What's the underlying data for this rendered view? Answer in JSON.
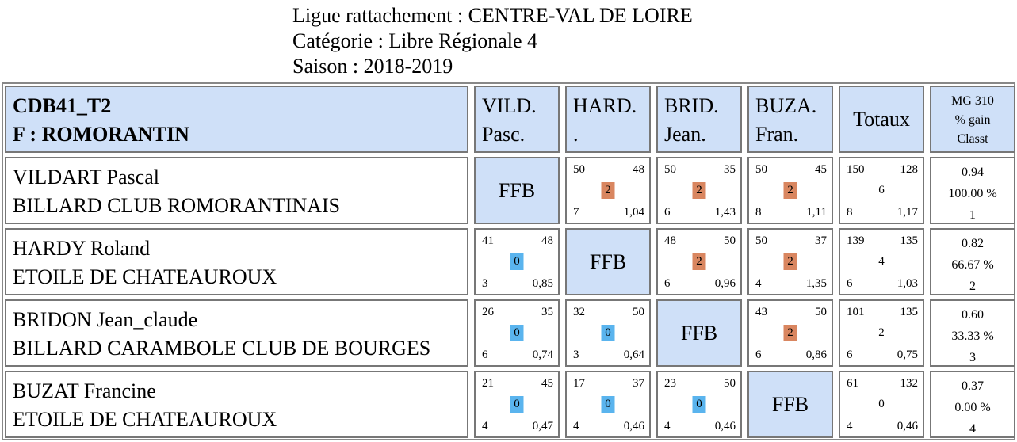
{
  "header": {
    "ligue": "Ligue rattachement : CENTRE-VAL DE LOIRE",
    "categorie": "Catégorie : Libre Régionale 4",
    "saison": "Saison : 2018-2019"
  },
  "table": {
    "title_line1": "CDB41_T2",
    "title_line2": "F : ROMORANTIN",
    "columns": [
      {
        "line1": "VILD.",
        "line2": "Pasc."
      },
      {
        "line1": "HARD.",
        "line2": "."
      },
      {
        "line1": "BRID.",
        "line2": "Jean."
      },
      {
        "line1": "BUZA.",
        "line2": "Fran."
      }
    ],
    "totals_header": "Totaux",
    "mg_header": [
      "MG 310",
      "% gain",
      "Classt"
    ],
    "ffb_label": "FFB",
    "colors": {
      "win": "#d98660",
      "loss": "#5ab4ee",
      "header_bg": "#cfe0f8"
    },
    "rows": [
      {
        "name": "VILDART Pascal",
        "club": "BILLARD CLUB ROMORANTINAIS",
        "matches": [
          null,
          {
            "pts": "50",
            "target": "48",
            "score": "2",
            "innings": "7",
            "avg": "1,04"
          },
          {
            "pts": "50",
            "target": "35",
            "score": "2",
            "innings": "6",
            "avg": "1,43"
          },
          {
            "pts": "50",
            "target": "45",
            "score": "2",
            "innings": "8",
            "avg": "1,11"
          }
        ],
        "totals": {
          "pts": "150",
          "target": "128",
          "score": "6",
          "innings": "8",
          "avg": "1,17"
        },
        "mg": {
          "mg": "0.94",
          "pct": "100.00 %",
          "rank": "1"
        }
      },
      {
        "name": "HARDY Roland",
        "club": "ETOILE DE CHATEAUROUX",
        "matches": [
          {
            "pts": "41",
            "target": "48",
            "score": "0",
            "innings": "3",
            "avg": "0,85"
          },
          null,
          {
            "pts": "48",
            "target": "50",
            "score": "2",
            "innings": "6",
            "avg": "0,96"
          },
          {
            "pts": "50",
            "target": "37",
            "score": "2",
            "innings": "4",
            "avg": "1,35"
          }
        ],
        "totals": {
          "pts": "139",
          "target": "135",
          "score": "4",
          "innings": "6",
          "avg": "1,03"
        },
        "mg": {
          "mg": "0.82",
          "pct": "66.67 %",
          "rank": "2"
        }
      },
      {
        "name": "BRIDON Jean_claude",
        "club": "BILLARD CARAMBOLE CLUB DE BOURGES",
        "matches": [
          {
            "pts": "26",
            "target": "35",
            "score": "0",
            "innings": "6",
            "avg": "0,74"
          },
          {
            "pts": "32",
            "target": "50",
            "score": "0",
            "innings": "3",
            "avg": "0,64"
          },
          null,
          {
            "pts": "43",
            "target": "50",
            "score": "2",
            "innings": "6",
            "avg": "0,86"
          }
        ],
        "totals": {
          "pts": "101",
          "target": "135",
          "score": "2",
          "innings": "6",
          "avg": "0,75"
        },
        "mg": {
          "mg": "0.60",
          "pct": "33.33 %",
          "rank": "3"
        }
      },
      {
        "name": "BUZAT Francine",
        "club": "ETOILE DE CHATEAUROUX",
        "matches": [
          {
            "pts": "21",
            "target": "45",
            "score": "0",
            "innings": "4",
            "avg": "0,47"
          },
          {
            "pts": "17",
            "target": "37",
            "score": "0",
            "innings": "4",
            "avg": "0,46"
          },
          {
            "pts": "23",
            "target": "50",
            "score": "0",
            "innings": "4",
            "avg": "0,46"
          },
          null
        ],
        "totals": {
          "pts": "61",
          "target": "132",
          "score": "0",
          "innings": "4",
          "avg": "0,46"
        },
        "mg": {
          "mg": "0.37",
          "pct": "0.00 %",
          "rank": "4"
        }
      }
    ]
  }
}
